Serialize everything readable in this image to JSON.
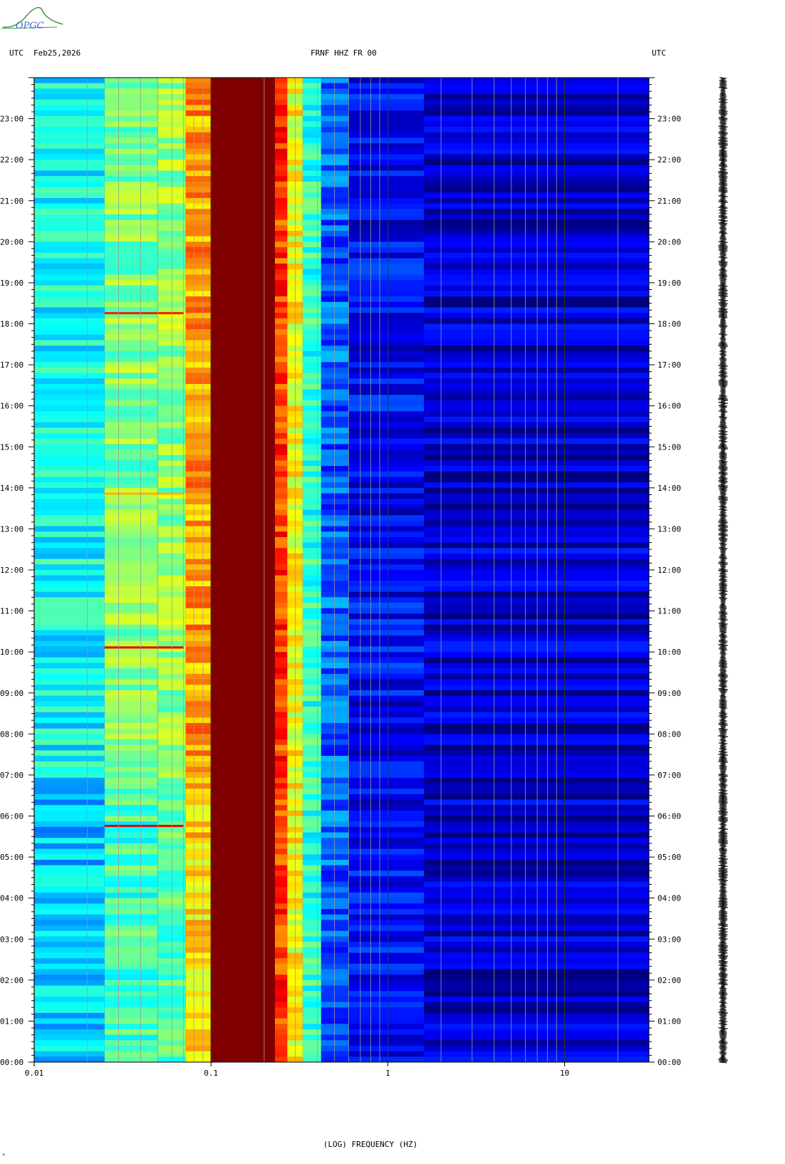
{
  "header": {
    "logo_text": "OPGC",
    "left_label": "UTC",
    "date": "Feb25,2026",
    "station": "FRNF HHZ FR 00",
    "right_label": "UTC"
  },
  "footnote": "*",
  "chart_data": {
    "type": "heatmap",
    "title": "FRNF HHZ FR 00",
    "xlabel": "(LOG) FREQUENCY (HZ)",
    "ylabel": "UTC",
    "x_scale": "log",
    "xlim": [
      0.01,
      30
    ],
    "x_ticks": [
      {
        "value": 0.01,
        "label": "0.01"
      },
      {
        "value": 0.1,
        "label": "0.1"
      },
      {
        "value": 1,
        "label": "1"
      },
      {
        "value": 10,
        "label": "10"
      }
    ],
    "y_ticks": [
      "00:00",
      "01:00",
      "02:00",
      "03:00",
      "04:00",
      "05:00",
      "06:00",
      "07:00",
      "08:00",
      "09:00",
      "10:00",
      "11:00",
      "12:00",
      "13:00",
      "14:00",
      "15:00",
      "16:00",
      "17:00",
      "18:00",
      "19:00",
      "20:00",
      "21:00",
      "22:00",
      "23:00"
    ],
    "ylim_hours": [
      0,
      24
    ],
    "frequency_bands": [
      {
        "from": 0.01,
        "to": 0.025,
        "level": 0.38
      },
      {
        "from": 0.025,
        "to": 0.05,
        "level": 0.5
      },
      {
        "from": 0.05,
        "to": 0.072,
        "level": 0.52
      },
      {
        "from": 0.072,
        "to": 0.1,
        "level": 0.72
      },
      {
        "from": 0.1,
        "to": 0.23,
        "level": 1.0
      },
      {
        "from": 0.23,
        "to": 0.27,
        "level": 0.82
      },
      {
        "from": 0.27,
        "to": 0.33,
        "level": 0.62
      },
      {
        "from": 0.33,
        "to": 0.42,
        "level": 0.42
      },
      {
        "from": 0.42,
        "to": 0.6,
        "level": 0.22
      },
      {
        "from": 0.6,
        "to": 1.6,
        "level": 0.12
      },
      {
        "from": 1.6,
        "to": 30,
        "level": 0.07
      }
    ],
    "notable_events": [
      {
        "hour": 5.75,
        "freq_from": 0.025,
        "freq_to": 0.07,
        "level": 0.9
      },
      {
        "hour": 10.1,
        "freq_from": 0.025,
        "freq_to": 0.07,
        "level": 0.9
      },
      {
        "hour": 13.85,
        "freq_from": 0.025,
        "freq_to": 0.07,
        "level": 0.7
      },
      {
        "hour": 18.25,
        "freq_from": 0.025,
        "freq_to": 0.07,
        "level": 0.85
      }
    ],
    "grid": true
  }
}
